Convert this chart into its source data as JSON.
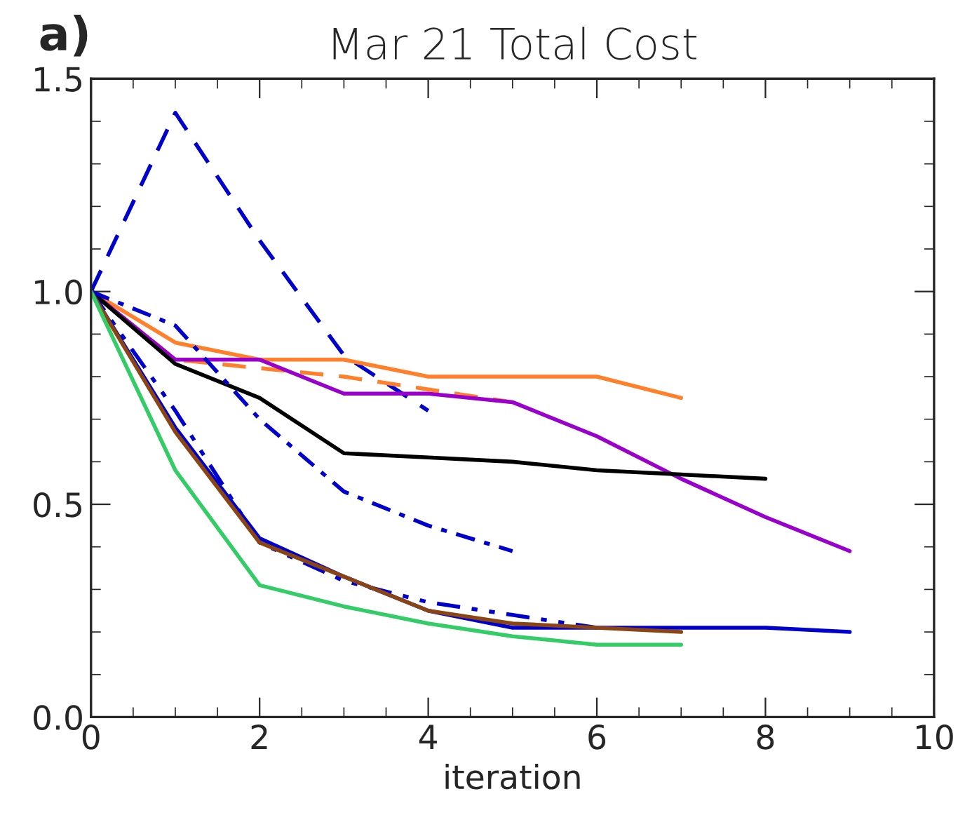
{
  "chart_data": {
    "type": "line",
    "title": "Mar 21 Total Cost",
    "xlabel": "iteration",
    "annotations": [
      "a)"
    ],
    "xlim": [
      0,
      10
    ],
    "xticks": [
      0,
      2,
      4,
      6,
      8,
      10
    ],
    "ylim": [
      0,
      1.5
    ],
    "yticks": [
      {
        "value": 0,
        "label": "0.0"
      },
      0.5,
      {
        "value": 1,
        "label": "1.0"
      },
      1.5
    ],
    "grid": false,
    "legend": false,
    "marker": "none",
    "series": [
      {
        "color": "#0000cc",
        "line_style": "dashed",
        "x": [
          0,
          1,
          2,
          3,
          4
        ],
        "values": [
          1.0,
          1.42,
          1.12,
          0.85,
          0.72
        ]
      },
      {
        "color": "#ff7f2a",
        "line_style": "solid",
        "x": [
          0,
          1,
          2,
          3,
          4,
          5,
          6,
          7
        ],
        "values": [
          1.0,
          0.88,
          0.84,
          0.84,
          0.8,
          0.8,
          0.8,
          0.75
        ]
      },
      {
        "color": "#ff7f2a",
        "line_style": "dashed",
        "x": [
          0,
          1,
          2,
          3,
          4,
          5
        ],
        "values": [
          1.0,
          0.84,
          0.82,
          0.8,
          0.77,
          0.74
        ]
      },
      {
        "color": "#9900cc",
        "line_style": "solid",
        "x": [
          0,
          1,
          2,
          3,
          4,
          5,
          6,
          7,
          8,
          9
        ],
        "values": [
          1.0,
          0.84,
          0.84,
          0.76,
          0.76,
          0.74,
          0.66,
          0.56,
          0.47,
          0.39
        ]
      },
      {
        "color": "#000000",
        "line_style": "solid",
        "x": [
          0,
          1,
          2,
          3,
          4,
          5,
          6,
          7,
          8
        ],
        "values": [
          1.0,
          0.83,
          0.75,
          0.62,
          0.61,
          0.6,
          0.58,
          0.57,
          0.56
        ]
      },
      {
        "color": "#0000cc",
        "line_style": "dashdot",
        "x": [
          0,
          1,
          2,
          3,
          4,
          5
        ],
        "values": [
          1.0,
          0.92,
          0.7,
          0.53,
          0.45,
          0.39
        ]
      },
      {
        "color": "#0000cc",
        "line_style": "dashdotdot",
        "x": [
          0,
          1,
          2,
          3,
          4,
          5,
          6
        ],
        "values": [
          1.0,
          0.72,
          0.41,
          0.32,
          0.27,
          0.24,
          0.21
        ]
      },
      {
        "color": "#0000cc",
        "line_style": "solid",
        "x": [
          0,
          1,
          2,
          3,
          4,
          5,
          6,
          7,
          8,
          9
        ],
        "values": [
          1.0,
          0.68,
          0.42,
          0.33,
          0.25,
          0.21,
          0.21,
          0.21,
          0.21,
          0.2
        ]
      },
      {
        "color": "#8b4513",
        "line_style": "solid",
        "x": [
          0,
          1,
          2,
          3,
          4,
          5,
          6,
          7
        ],
        "values": [
          1.0,
          0.67,
          0.41,
          0.33,
          0.25,
          0.22,
          0.21,
          0.2
        ]
      },
      {
        "color": "#33cc66",
        "line_style": "solid",
        "x": [
          0,
          1,
          2,
          3,
          4,
          5,
          6,
          7
        ],
        "values": [
          1.0,
          0.58,
          0.31,
          0.26,
          0.22,
          0.19,
          0.17,
          0.17
        ]
      }
    ]
  }
}
